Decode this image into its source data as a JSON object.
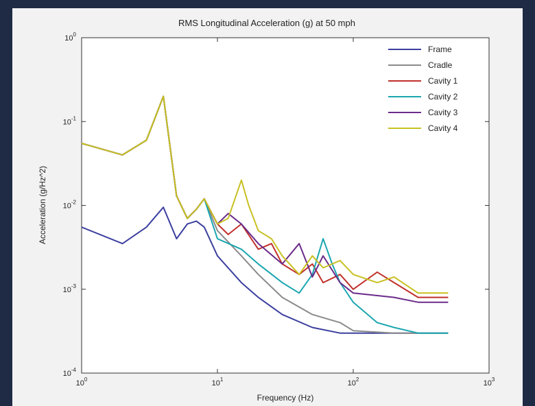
{
  "chart_data": {
    "type": "line",
    "title": "RMS Longitudinal Acceleration (g) at 50 mph",
    "xlabel": "Frequency (Hz)",
    "ylabel": "Acceleration (g/Hz^2)",
    "xscale": "log",
    "yscale": "log",
    "xlim": [
      1,
      1000
    ],
    "ylim": [
      0.0001,
      1
    ],
    "x_ticks": [
      {
        "value": 1,
        "label": "10^0"
      },
      {
        "value": 10,
        "label": "10^1"
      },
      {
        "value": 100,
        "label": "10^2"
      },
      {
        "value": 1000,
        "label": "10^3"
      }
    ],
    "y_ticks": [
      {
        "value": 0.0001,
        "label": "10^-4"
      },
      {
        "value": 0.001,
        "label": "10^-3"
      },
      {
        "value": 0.01,
        "label": "10^-2"
      },
      {
        "value": 0.1,
        "label": "10^-1"
      },
      {
        "value": 1,
        "label": "10^0"
      }
    ],
    "grid": false,
    "legend_position": "top-right",
    "series": [
      {
        "name": "Frame",
        "color": "#3b3f9e",
        "x": [
          1,
          2,
          3,
          4,
          5,
          6,
          7,
          8,
          10,
          15,
          20,
          30,
          50,
          80,
          100,
          200,
          300,
          500
        ],
        "y": [
          0.0055,
          0.0035,
          0.0055,
          0.0095,
          0.004,
          0.006,
          0.0065,
          0.0055,
          0.0025,
          0.0012,
          0.0008,
          0.0005,
          0.00035,
          0.0003,
          0.0003,
          0.0003,
          0.0003,
          0.0003
        ]
      },
      {
        "name": "Cradle",
        "color": "#8a8a8a",
        "x": [
          1,
          2,
          3,
          4,
          5,
          6,
          7,
          8,
          10,
          15,
          20,
          30,
          50,
          80,
          100,
          200,
          300,
          500
        ],
        "y": [
          0.055,
          0.04,
          0.06,
          0.2,
          0.013,
          0.007,
          0.009,
          0.012,
          0.005,
          0.0025,
          0.0015,
          0.0008,
          0.0005,
          0.0004,
          0.00032,
          0.0003,
          0.0003,
          0.0003
        ]
      },
      {
        "name": "Cavity 1",
        "color": "#c0302b",
        "x": [
          1,
          2,
          3,
          4,
          5,
          6,
          7,
          8,
          10,
          12,
          15,
          20,
          25,
          30,
          40,
          50,
          60,
          80,
          100,
          150,
          200,
          300,
          500
        ],
        "y": [
          0.055,
          0.04,
          0.06,
          0.2,
          0.013,
          0.007,
          0.009,
          0.012,
          0.006,
          0.0045,
          0.006,
          0.003,
          0.0035,
          0.002,
          0.0015,
          0.002,
          0.0012,
          0.0015,
          0.001,
          0.0016,
          0.0012,
          0.0008,
          0.0008
        ]
      },
      {
        "name": "Cavity 2",
        "color": "#1aa6b0",
        "x": [
          1,
          2,
          3,
          4,
          5,
          6,
          7,
          8,
          10,
          15,
          20,
          30,
          40,
          50,
          60,
          70,
          80,
          100,
          150,
          200,
          300,
          500
        ],
        "y": [
          0.055,
          0.04,
          0.06,
          0.2,
          0.013,
          0.007,
          0.009,
          0.012,
          0.004,
          0.003,
          0.002,
          0.0012,
          0.0009,
          0.0015,
          0.004,
          0.002,
          0.0012,
          0.0007,
          0.0004,
          0.00035,
          0.0003,
          0.0003
        ]
      },
      {
        "name": "Cavity 3",
        "color": "#6a2a8a",
        "x": [
          1,
          2,
          3,
          4,
          5,
          6,
          7,
          8,
          10,
          12,
          15,
          20,
          30,
          40,
          50,
          60,
          80,
          100,
          200,
          300,
          500
        ],
        "y": [
          0.055,
          0.04,
          0.06,
          0.2,
          0.013,
          0.007,
          0.009,
          0.012,
          0.006,
          0.008,
          0.006,
          0.0035,
          0.002,
          0.0035,
          0.0014,
          0.0025,
          0.0012,
          0.0009,
          0.0008,
          0.0007,
          0.0007
        ]
      },
      {
        "name": "Cavity 4",
        "color": "#c8c020",
        "x": [
          1,
          2,
          3,
          4,
          5,
          6,
          7,
          8,
          10,
          12,
          15,
          17,
          20,
          25,
          30,
          40,
          50,
          60,
          80,
          100,
          150,
          200,
          300,
          500
        ],
        "y": [
          0.055,
          0.04,
          0.06,
          0.2,
          0.013,
          0.007,
          0.009,
          0.012,
          0.006,
          0.007,
          0.02,
          0.01,
          0.005,
          0.004,
          0.0025,
          0.0015,
          0.0025,
          0.0018,
          0.0022,
          0.0015,
          0.0012,
          0.0014,
          0.0009,
          0.0009
        ]
      }
    ]
  }
}
